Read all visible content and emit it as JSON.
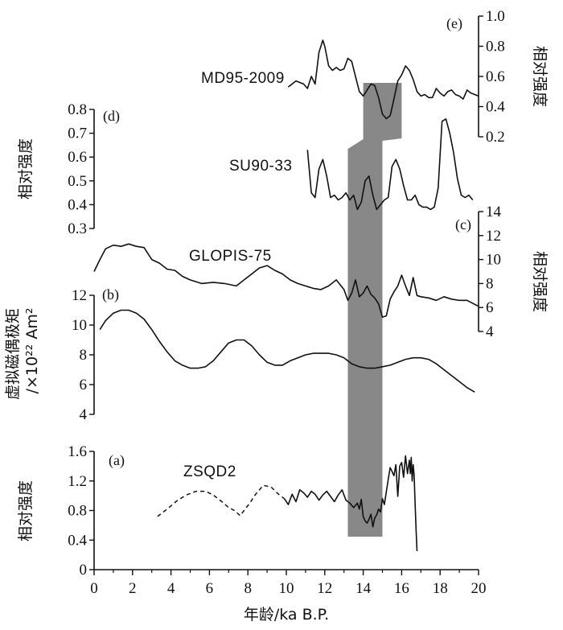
{
  "chart_data": {
    "type": "line",
    "xlabel": "年龄/ka B.P.",
    "xlim": [
      0,
      20
    ],
    "x_ticks": [
      "0",
      "2",
      "4",
      "6",
      "8",
      "10",
      "12",
      "14",
      "16",
      "18",
      "20"
    ],
    "shade": {
      "x_start": 13.2,
      "x_end": 15.0,
      "color": "#888888"
    },
    "panels": [
      {
        "letter": "(e)",
        "series_label": "MD95-2009",
        "ylabel": "相对强度",
        "ylim": [
          0.2,
          1.0
        ],
        "y_ticks": [
          "0.2",
          "0.4",
          "0.6",
          "0.8",
          "1.0"
        ],
        "x": [
          10.1,
          10.5,
          10.9,
          11.1,
          11.3,
          11.5,
          11.7,
          11.9,
          12.0,
          12.2,
          12.4,
          12.6,
          12.8,
          13.0,
          13.2,
          13.4,
          13.6,
          13.8,
          14.0,
          14.2,
          14.4,
          14.6,
          14.8,
          15.0,
          15.2,
          15.4,
          15.6,
          15.8,
          16.0,
          16.2,
          16.4,
          16.6,
          16.8,
          17.0,
          17.2,
          17.4,
          17.6,
          17.8,
          18.0,
          18.2,
          18.4,
          18.6,
          18.8,
          19.0,
          19.2,
          19.4,
          19.6,
          19.8,
          20.0
        ],
        "y": [
          0.53,
          0.57,
          0.55,
          0.52,
          0.6,
          0.55,
          0.76,
          0.84,
          0.8,
          0.67,
          0.64,
          0.66,
          0.64,
          0.65,
          0.72,
          0.7,
          0.6,
          0.5,
          0.47,
          0.51,
          0.55,
          0.54,
          0.46,
          0.35,
          0.32,
          0.34,
          0.45,
          0.57,
          0.61,
          0.67,
          0.64,
          0.58,
          0.5,
          0.47,
          0.48,
          0.46,
          0.46,
          0.52,
          0.49,
          0.47,
          0.5,
          0.51,
          0.48,
          0.47,
          0.45,
          0.51,
          0.49,
          0.48,
          0.47
        ]
      },
      {
        "letter": "(d)",
        "series_label": "SU90-33",
        "ylabel": "相对强度",
        "ylim": [
          0.3,
          0.8
        ],
        "y_ticks": [
          "0.3",
          "0.4",
          "0.5",
          "0.6",
          "0.7",
          "0.8"
        ],
        "x": [
          11.1,
          11.3,
          11.5,
          11.7,
          11.9,
          12.1,
          12.3,
          12.5,
          12.7,
          12.9,
          13.1,
          13.3,
          13.5,
          13.7,
          13.9,
          14.1,
          14.3,
          14.5,
          14.7,
          14.9,
          15.1,
          15.3,
          15.5,
          15.7,
          15.9,
          16.1,
          16.3,
          16.5,
          16.7,
          16.9,
          17.1,
          17.3,
          17.5,
          17.7,
          17.9,
          18.1,
          18.3,
          18.5,
          18.7,
          18.9,
          19.1,
          19.3,
          19.5,
          19.7
        ],
        "y": [
          0.63,
          0.45,
          0.43,
          0.55,
          0.59,
          0.52,
          0.43,
          0.44,
          0.42,
          0.43,
          0.45,
          0.42,
          0.44,
          0.38,
          0.41,
          0.5,
          0.52,
          0.44,
          0.38,
          0.4,
          0.42,
          0.43,
          0.56,
          0.59,
          0.55,
          0.48,
          0.42,
          0.42,
          0.44,
          0.4,
          0.39,
          0.39,
          0.38,
          0.39,
          0.47,
          0.75,
          0.76,
          0.7,
          0.62,
          0.51,
          0.44,
          0.43,
          0.44,
          0.42
        ]
      },
      {
        "letter": "(c)",
        "series_label": "GLOPIS-75",
        "ylabel": "相对强度",
        "ylim": [
          4,
          14
        ],
        "y_ticks": [
          "4",
          "6",
          "8",
          "10",
          "12",
          "14"
        ],
        "x": [
          0.0,
          0.3,
          0.6,
          1.0,
          1.4,
          1.8,
          2.2,
          2.6,
          3.0,
          3.4,
          3.8,
          4.2,
          4.6,
          5.0,
          5.6,
          6.2,
          6.8,
          7.4,
          7.8,
          8.2,
          8.6,
          9.0,
          9.4,
          9.8,
          10.2,
          10.6,
          11.0,
          11.4,
          11.8,
          12.2,
          12.6,
          13.0,
          13.2,
          13.4,
          13.6,
          13.8,
          14.0,
          14.2,
          14.4,
          14.6,
          14.8,
          15.0,
          15.2,
          15.4,
          15.6,
          15.8,
          16.0,
          16.2,
          16.4,
          16.6,
          16.8,
          17.0,
          17.4,
          17.8,
          18.2,
          18.6,
          19.0,
          19.4,
          20.0
        ],
        "y": [
          9.0,
          10.0,
          10.9,
          11.2,
          11.1,
          11.3,
          11.1,
          11.0,
          10.0,
          9.7,
          9.2,
          9.1,
          8.6,
          8.3,
          8.0,
          8.1,
          8.0,
          7.8,
          8.3,
          8.8,
          9.3,
          9.5,
          9.1,
          8.8,
          8.3,
          8.0,
          7.8,
          7.6,
          7.5,
          7.8,
          8.3,
          7.5,
          6.6,
          7.2,
          8.3,
          6.9,
          7.2,
          7.8,
          7.1,
          6.8,
          6.3,
          5.2,
          5.3,
          6.7,
          7.3,
          7.8,
          8.7,
          7.8,
          7.0,
          8.5,
          7.0,
          6.9,
          6.8,
          6.6,
          6.9,
          6.7,
          6.6,
          6.6,
          6.1
        ]
      },
      {
        "letter": "(b)",
        "series_label": "",
        "ylabel": "虚拟磁偶极矩",
        "ylabel2": "/×10²² Am²",
        "ylim": [
          4,
          12
        ],
        "y_ticks": [
          "4",
          "6",
          "8",
          "10",
          "12"
        ],
        "x": [
          0.3,
          0.6,
          1.0,
          1.4,
          1.8,
          2.2,
          2.6,
          3.0,
          3.4,
          3.8,
          4.2,
          4.6,
          5.0,
          5.4,
          5.8,
          6.2,
          6.6,
          7.0,
          7.4,
          7.8,
          8.2,
          8.6,
          9.0,
          9.4,
          9.8,
          10.2,
          10.6,
          11.0,
          11.4,
          11.8,
          12.2,
          12.6,
          13.0,
          13.4,
          13.8,
          14.2,
          14.6,
          15.0,
          15.4,
          15.8,
          16.2,
          16.6,
          17.0,
          17.4,
          17.8,
          18.2,
          18.6,
          19.0,
          19.4,
          19.8
        ],
        "y": [
          9.7,
          10.3,
          10.8,
          11.0,
          11.0,
          10.8,
          10.4,
          9.7,
          8.9,
          8.2,
          7.6,
          7.3,
          7.1,
          7.1,
          7.2,
          7.6,
          8.2,
          8.8,
          9.0,
          9.0,
          8.6,
          8.0,
          7.5,
          7.3,
          7.3,
          7.6,
          7.8,
          8.0,
          8.1,
          8.1,
          8.1,
          8.0,
          7.8,
          7.4,
          7.2,
          7.1,
          7.1,
          7.2,
          7.3,
          7.5,
          7.7,
          7.8,
          7.8,
          7.7,
          7.4,
          7.0,
          6.6,
          6.2,
          5.8,
          5.5
        ]
      },
      {
        "letter": "(a)",
        "series_label": "ZSQD2",
        "ylabel": "相对强度",
        "ylim": [
          0,
          1.6
        ],
        "y_ticks": [
          "0",
          "0.4",
          "0.8",
          "1.2",
          "1.6"
        ],
        "dashed_x": [
          3.3,
          3.8,
          4.3,
          4.8,
          5.3,
          5.8,
          6.2,
          6.6,
          7.0,
          7.3,
          7.6,
          7.8,
          8.1,
          8.4,
          8.8,
          9.2,
          9.6,
          9.9
        ],
        "dashed_y": [
          0.72,
          0.82,
          0.93,
          1.01,
          1.06,
          1.06,
          1.01,
          0.93,
          0.84,
          0.8,
          0.73,
          0.8,
          0.9,
          1.02,
          1.14,
          1.12,
          1.02,
          0.96
        ],
        "x": [
          9.9,
          10.1,
          10.3,
          10.5,
          10.7,
          10.9,
          11.1,
          11.3,
          11.5,
          11.7,
          11.9,
          12.1,
          12.3,
          12.5,
          12.7,
          12.9,
          13.1,
          13.3,
          13.5,
          13.7,
          13.8,
          13.9,
          14.0,
          14.1,
          14.2,
          14.3,
          14.4,
          14.5,
          14.6,
          14.7,
          14.8,
          14.9,
          15.0,
          15.1,
          15.2,
          15.3,
          15.4,
          15.5,
          15.6,
          15.7,
          15.8,
          15.9,
          16.0,
          16.1,
          16.2,
          16.3,
          16.4,
          16.45,
          16.5,
          16.55,
          16.6,
          16.65,
          16.7,
          16.75,
          16.8
        ],
        "y": [
          0.96,
          0.88,
          1.02,
          0.92,
          1.08,
          1.04,
          0.98,
          1.06,
          1.02,
          0.94,
          1.01,
          1.06,
          0.99,
          0.92,
          1.01,
          1.08,
          0.94,
          0.9,
          0.84,
          0.9,
          0.82,
          0.95,
          0.72,
          0.66,
          0.63,
          0.68,
          0.75,
          0.58,
          0.7,
          0.74,
          0.82,
          0.78,
          0.96,
          0.88,
          1.05,
          1.22,
          1.38,
          1.33,
          1.27,
          1.42,
          0.99,
          1.4,
          1.45,
          1.25,
          1.54,
          1.3,
          1.48,
          1.3,
          1.52,
          1.2,
          1.42,
          1.28,
          0.9,
          0.55,
          0.25
        ]
      }
    ]
  }
}
